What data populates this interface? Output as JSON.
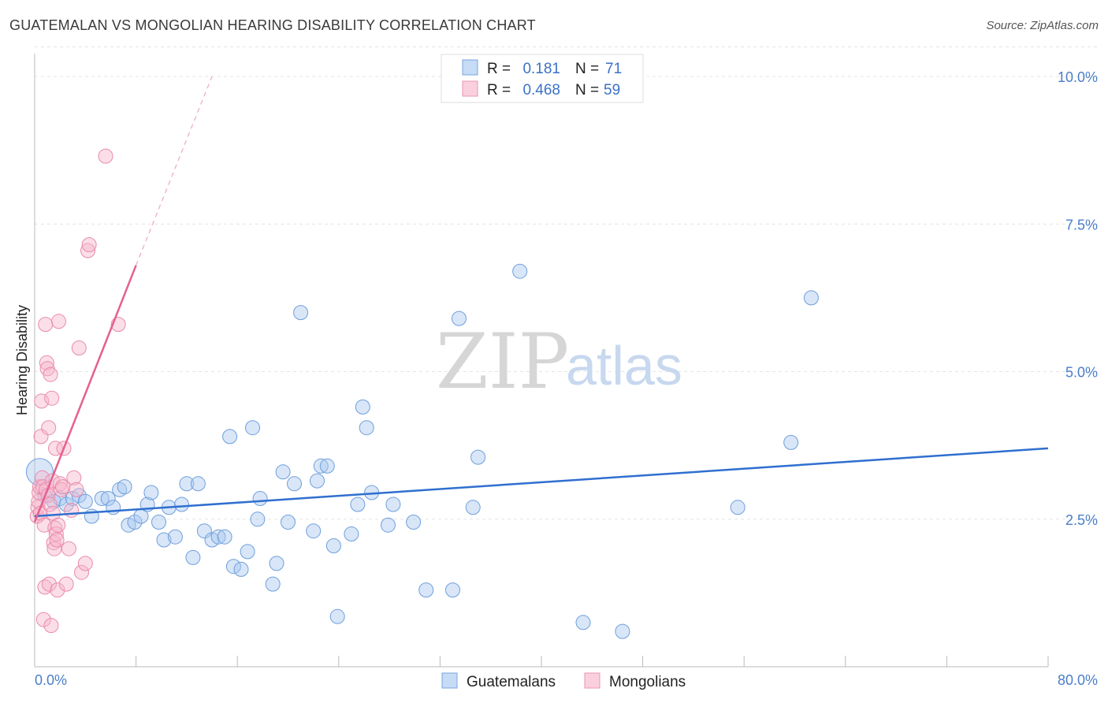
{
  "header": {
    "title": "GUATEMALAN VS MONGOLIAN HEARING DISABILITY CORRELATION CHART",
    "source": "Source: ZipAtlas.com"
  },
  "watermark": {
    "zip": "ZIP",
    "atlas": "atlas"
  },
  "legend_box": {
    "rows": [
      {
        "r_label": "R =",
        "r_value": "0.181",
        "n_label": "N =",
        "n_value": "71",
        "color": "#a8c8f0"
      },
      {
        "r_label": "R =",
        "r_value": "0.468",
        "n_label": "N =",
        "n_value": "59",
        "color": "#f7b6cb"
      }
    ]
  },
  "bottom_legend": [
    {
      "label": "Guatemalans",
      "color": "#a8c8f0"
    },
    {
      "label": "Mongolians",
      "color": "#f7b6cb"
    }
  ],
  "chart_data": {
    "type": "scatter",
    "title": "GUATEMALAN VS MONGOLIAN HEARING DISABILITY CORRELATION CHART",
    "xlabel": "",
    "ylabel": "Hearing Disability",
    "xlim": [
      0,
      80
    ],
    "ylim": [
      0,
      10.5
    ],
    "x_tick_labels": [
      "0.0%",
      "80.0%"
    ],
    "y_ticks": [
      2.5,
      5.0,
      7.5,
      10.0
    ],
    "y_tick_labels": [
      "2.5%",
      "5.0%",
      "7.5%",
      "10.0%"
    ],
    "grid": true,
    "legend_position": "top-center",
    "colors": {
      "Guatemalans": "#3a78d0",
      "Mongolians": "#e8709a"
    },
    "series": [
      {
        "name": "Guatemalans",
        "r": "0.181",
        "n": "71",
        "trend": {
          "x": [
            0,
            80
          ],
          "y": [
            2.55,
            3.7
          ]
        },
        "points": [
          [
            0.4,
            3.3
          ],
          [
            0.8,
            2.9
          ],
          [
            1.5,
            2.8
          ],
          [
            2.0,
            2.85
          ],
          [
            2.5,
            2.75
          ],
          [
            3.0,
            2.85
          ],
          [
            3.5,
            2.9
          ],
          [
            4.0,
            2.8
          ],
          [
            4.5,
            2.55
          ],
          [
            5.3,
            2.85
          ],
          [
            5.8,
            2.85
          ],
          [
            6.2,
            2.7
          ],
          [
            6.7,
            3.0
          ],
          [
            7.1,
            3.05
          ],
          [
            7.4,
            2.4
          ],
          [
            7.9,
            2.45
          ],
          [
            8.4,
            2.55
          ],
          [
            8.9,
            2.75
          ],
          [
            9.2,
            2.95
          ],
          [
            9.8,
            2.45
          ],
          [
            10.2,
            2.15
          ],
          [
            10.6,
            2.7
          ],
          [
            11.1,
            2.2
          ],
          [
            11.6,
            2.75
          ],
          [
            12.0,
            3.1
          ],
          [
            12.5,
            1.85
          ],
          [
            12.9,
            3.1
          ],
          [
            13.4,
            2.3
          ],
          [
            14.0,
            2.15
          ],
          [
            14.5,
            2.2
          ],
          [
            15.0,
            2.2
          ],
          [
            15.4,
            3.9
          ],
          [
            15.7,
            1.7
          ],
          [
            16.3,
            1.65
          ],
          [
            16.8,
            1.95
          ],
          [
            17.2,
            4.05
          ],
          [
            17.6,
            2.5
          ],
          [
            17.8,
            2.85
          ],
          [
            18.8,
            1.4
          ],
          [
            19.1,
            1.75
          ],
          [
            19.6,
            3.3
          ],
          [
            20.0,
            2.45
          ],
          [
            20.5,
            3.1
          ],
          [
            21.0,
            6.0
          ],
          [
            22.0,
            2.3
          ],
          [
            22.3,
            3.15
          ],
          [
            22.6,
            3.4
          ],
          [
            23.1,
            3.4
          ],
          [
            23.6,
            2.05
          ],
          [
            23.9,
            0.85
          ],
          [
            25.0,
            2.25
          ],
          [
            25.5,
            2.75
          ],
          [
            25.9,
            4.4
          ],
          [
            26.2,
            4.05
          ],
          [
            26.6,
            2.95
          ],
          [
            27.9,
            2.4
          ],
          [
            28.3,
            2.75
          ],
          [
            29.9,
            2.45
          ],
          [
            30.9,
            1.3
          ],
          [
            33.0,
            1.3
          ],
          [
            33.5,
            5.9
          ],
          [
            34.6,
            2.7
          ],
          [
            35.0,
            3.55
          ],
          [
            38.3,
            6.7
          ],
          [
            43.3,
            0.75
          ],
          [
            46.4,
            0.6
          ],
          [
            55.5,
            2.7
          ],
          [
            59.7,
            3.8
          ],
          [
            61.3,
            6.25
          ]
        ]
      },
      {
        "name": "Mongolians",
        "r": "0.468",
        "n": "59",
        "trend": {
          "x": [
            0,
            8
          ],
          "y": [
            2.45,
            6.8
          ]
        },
        "trend_dashed": {
          "x": [
            8,
            14
          ],
          "y": [
            6.8,
            10.0
          ]
        },
        "points": [
          [
            0.2,
            2.55
          ],
          [
            0.25,
            2.7
          ],
          [
            0.3,
            2.8
          ],
          [
            0.35,
            2.95
          ],
          [
            0.4,
            3.05
          ],
          [
            0.45,
            2.6
          ],
          [
            0.5,
            3.9
          ],
          [
            0.55,
            4.5
          ],
          [
            0.6,
            3.2
          ],
          [
            0.65,
            3.05
          ],
          [
            0.7,
            0.8
          ],
          [
            0.75,
            2.4
          ],
          [
            0.8,
            1.35
          ],
          [
            0.85,
            5.8
          ],
          [
            0.9,
            3.0
          ],
          [
            0.95,
            5.15
          ],
          [
            1.0,
            5.05
          ],
          [
            1.05,
            2.9
          ],
          [
            1.1,
            4.05
          ],
          [
            1.15,
            1.4
          ],
          [
            1.2,
            2.75
          ],
          [
            1.25,
            4.95
          ],
          [
            1.3,
            0.7
          ],
          [
            1.35,
            4.55
          ],
          [
            1.4,
            3.15
          ],
          [
            1.45,
            2.6
          ],
          [
            1.5,
            2.1
          ],
          [
            1.55,
            2.0
          ],
          [
            1.6,
            2.35
          ],
          [
            1.65,
            3.7
          ],
          [
            1.7,
            2.25
          ],
          [
            1.75,
            2.15
          ],
          [
            1.8,
            1.3
          ],
          [
            1.85,
            2.4
          ],
          [
            1.9,
            5.85
          ],
          [
            2.0,
            3.1
          ],
          [
            2.1,
            3.0
          ],
          [
            2.2,
            3.05
          ],
          [
            2.3,
            3.7
          ],
          [
            2.5,
            1.4
          ],
          [
            2.7,
            2.0
          ],
          [
            2.9,
            2.65
          ],
          [
            3.1,
            3.2
          ],
          [
            3.3,
            3.0
          ],
          [
            3.5,
            5.4
          ],
          [
            3.7,
            1.6
          ],
          [
            4.0,
            1.75
          ],
          [
            4.2,
            7.05
          ],
          [
            4.3,
            7.15
          ],
          [
            5.6,
            8.65
          ],
          [
            6.6,
            5.8
          ]
        ]
      }
    ]
  }
}
